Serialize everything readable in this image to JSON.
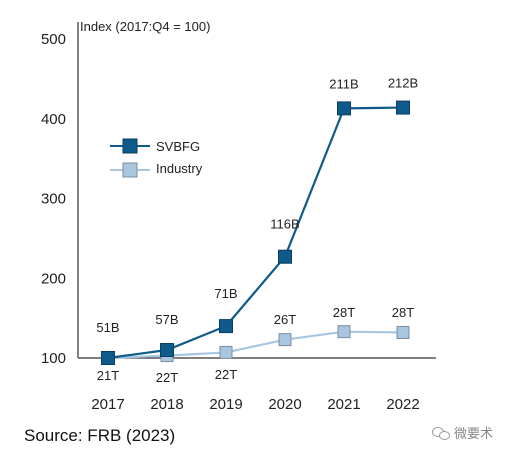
{
  "chart_data": {
    "type": "line",
    "index_note": "Index (2017:Q4 = 100)",
    "categories": [
      "2017",
      "2018",
      "2019",
      "2020",
      "2021",
      "2022"
    ],
    "yticks": [
      "500",
      "400",
      "300",
      "200",
      "100"
    ],
    "ylim": [
      100,
      500
    ],
    "grid": false,
    "legend_position": "upper-left",
    "series": [
      {
        "name": "SVBFG",
        "values": [
          100,
          110,
          140,
          227,
          413,
          414
        ],
        "labels": [
          "51B",
          "57B",
          "71B",
          "116B",
          "211B",
          "212B"
        ],
        "color": "#0e5a8a"
      },
      {
        "name": "Industry",
        "values": [
          100,
          103,
          107,
          123,
          133,
          132
        ],
        "labels": [
          "21T",
          "22T",
          "22T",
          "26T",
          "28T",
          "28T"
        ],
        "color": "#a8c6e0"
      }
    ]
  },
  "source": "Source: FRB (2023)",
  "watermark": "微要术"
}
